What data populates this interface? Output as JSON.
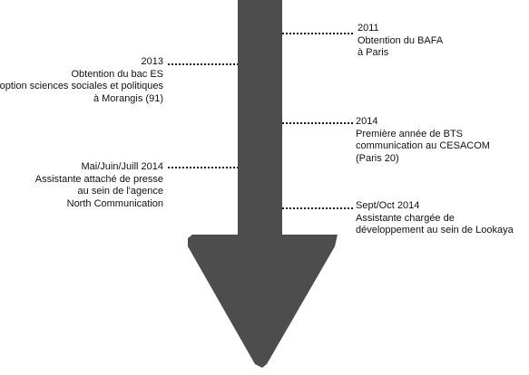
{
  "colors": {
    "arrow": "#4d4d4d",
    "connector": "#1a1a1a",
    "text": "#111111",
    "background": "#ffffff"
  },
  "events": [
    {
      "id": "2011",
      "side": "right",
      "lines": [
        "2011",
        "Obtention du BAFA",
        "à Paris"
      ]
    },
    {
      "id": "2013",
      "side": "left",
      "lines": [
        "2013",
        "Obtention du bac ES",
        "option sciences sociales et politiques",
        "à Morangis (91)"
      ]
    },
    {
      "id": "2014-bts",
      "side": "right",
      "lines": [
        "2014",
        "Première année de BTS",
        "communication au CESACOM",
        "(Paris 20)"
      ]
    },
    {
      "id": "2014-assist",
      "side": "left",
      "lines": [
        "Mai/Juin/Juill 2014",
        "Assistante attaché de presse",
        "au sein de l'agence",
        "North Communication"
      ]
    },
    {
      "id": "2014-lookaya",
      "side": "right",
      "lines": [
        "Sept/Oct 2014",
        "Assistante chargée de",
        "développement au sein de Lookaya"
      ]
    }
  ]
}
